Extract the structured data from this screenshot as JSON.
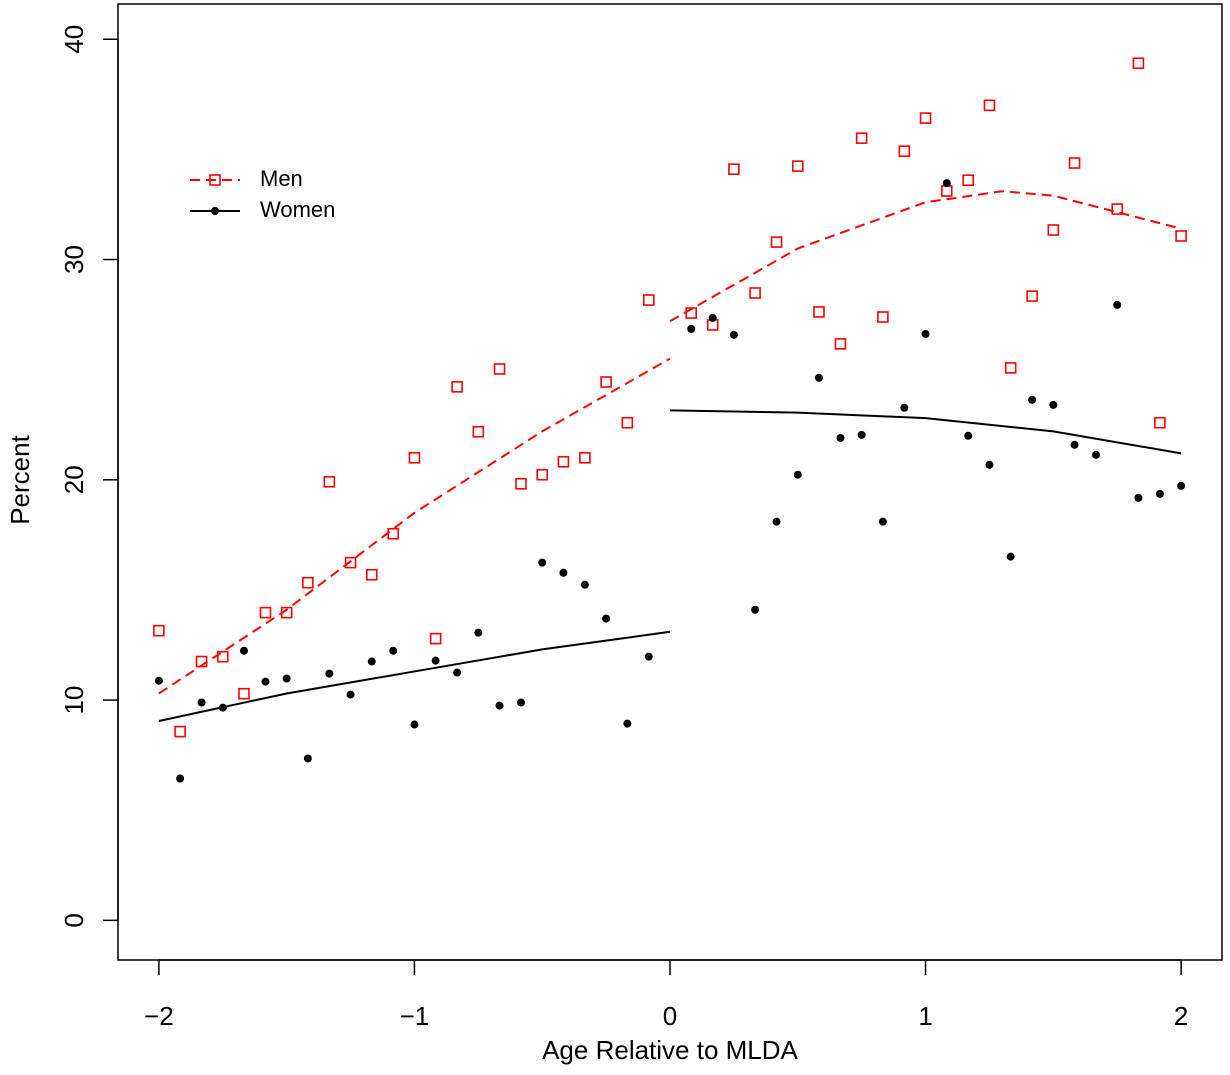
{
  "chart_data": {
    "type": "scatter",
    "xlabel": "Age Relative to MLDA",
    "ylabel": "Percent",
    "xlim": [
      -2.16,
      2.16
    ],
    "ylim": [
      -1.8,
      41.6
    ],
    "xticks": [
      {
        "value": -2,
        "label": "−2"
      },
      {
        "value": -1,
        "label": "−1"
      },
      0,
      1,
      2
    ],
    "yticks": [
      0,
      10,
      20,
      30,
      40
    ],
    "legend": "top-left",
    "series": [
      {
        "name": "Men",
        "color": "#ff0000",
        "marker": "square",
        "line": "dashed",
        "x": [
          -2,
          -1.917,
          -1.833,
          -1.75,
          -1.667,
          -1.583,
          -1.5,
          -1.417,
          -1.333,
          -1.25,
          -1.167,
          -1.083,
          -1,
          -0.917,
          -0.833,
          -0.75,
          -0.667,
          -0.583,
          -0.5,
          -0.417,
          -0.333,
          -0.25,
          -0.167,
          -0.083,
          0.083,
          0.167,
          0.25,
          0.333,
          0.417,
          0.5,
          0.583,
          0.667,
          0.75,
          0.833,
          0.917,
          1,
          1.083,
          1.167,
          1.25,
          1.333,
          1.417,
          1.5,
          1.583,
          1.75,
          1.833,
          1.917,
          2
        ],
        "values": [
          13.15,
          8.57,
          11.75,
          11.97,
          10.29,
          13.97,
          13.97,
          15.33,
          19.91,
          16.24,
          15.69,
          17.55,
          21.0,
          12.79,
          24.22,
          22.18,
          25.03,
          19.82,
          20.23,
          20.82,
          21.0,
          24.44,
          22.59,
          28.16,
          27.57,
          27.03,
          34.1,
          28.48,
          30.79,
          34.24,
          27.62,
          26.17,
          35.51,
          27.39,
          34.92,
          36.42,
          33.11,
          33.6,
          37.0,
          25.08,
          28.34,
          31.34,
          34.38,
          32.29,
          38.91,
          22.59,
          31.07
        ],
        "fit_x": [
          -2,
          -1.5,
          -1,
          -0.5,
          0,
          null,
          0,
          0.5,
          1,
          1.3,
          1.5,
          2
        ],
        "fit_values": [
          10.3,
          14.1,
          18.5,
          22.2,
          25.5,
          null,
          27.2,
          30.5,
          32.6,
          33.1,
          32.9,
          31.4
        ]
      },
      {
        "name": "Women",
        "color": "#000000",
        "marker": "dot",
        "line": "solid",
        "x": [
          -2,
          -1.917,
          -1.833,
          -1.75,
          -1.667,
          -1.583,
          -1.5,
          -1.417,
          -1.333,
          -1.25,
          -1.167,
          -1.083,
          -1,
          -0.917,
          -0.833,
          -0.75,
          -0.667,
          -0.583,
          -0.5,
          -0.417,
          -0.333,
          -0.25,
          -0.167,
          -0.083,
          0.083,
          0.167,
          0.25,
          0.333,
          0.417,
          0.5,
          0.583,
          0.667,
          0.75,
          0.833,
          0.917,
          1,
          1.083,
          1.167,
          1.25,
          1.333,
          1.417,
          1.5,
          1.583,
          1.667,
          1.75,
          1.833,
          1.917,
          2
        ],
        "values": [
          10.88,
          6.44,
          9.89,
          9.66,
          12.24,
          10.84,
          10.98,
          7.35,
          11.2,
          10.25,
          11.75,
          12.24,
          8.89,
          11.79,
          11.25,
          13.06,
          9.75,
          9.89,
          16.24,
          15.78,
          15.24,
          13.7,
          8.93,
          11.97,
          26.85,
          27.35,
          26.58,
          14.1,
          18.1,
          20.23,
          24.63,
          21.9,
          22.04,
          18.1,
          23.27,
          26.62,
          33.47,
          22.0,
          20.68,
          16.51,
          23.63,
          23.4,
          21.59,
          21.13,
          27.94,
          19.18,
          19.36,
          19.73
        ],
        "fit_x": [
          -2,
          -1.5,
          -1,
          -0.5,
          0,
          null,
          0,
          0.5,
          1,
          1.5,
          2
        ],
        "fit_values": [
          9.05,
          10.3,
          11.3,
          12.3,
          13.1,
          null,
          23.15,
          23.05,
          22.8,
          22.2,
          21.2
        ]
      }
    ]
  }
}
